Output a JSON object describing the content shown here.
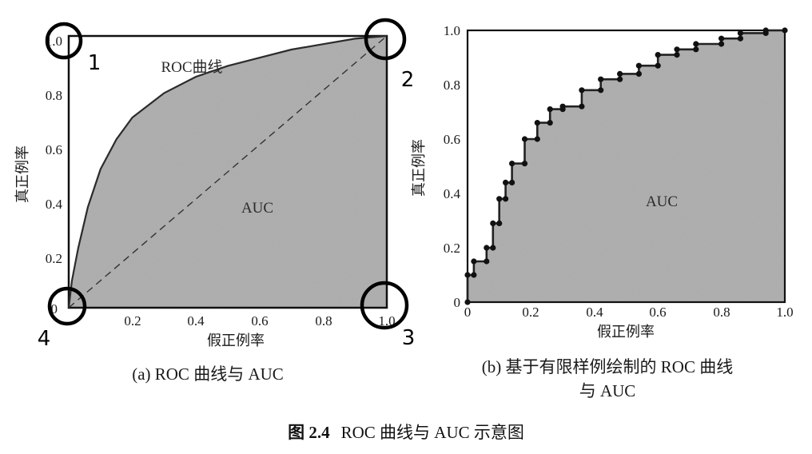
{
  "figure": {
    "caption_label": "图 2.4",
    "caption_text": "ROC 曲线与 AUC 示意图"
  },
  "panel_a": {
    "caption": "(a) ROC 曲线与 AUC",
    "curve_label": "ROC曲线",
    "area_label": "AUC",
    "xlabel": "假正例率",
    "ylabel": "真正例率",
    "x_ticks": [
      "0.2",
      "0.4",
      "0.6",
      "0.8",
      "1.0"
    ],
    "y_ticks": [
      "0.2",
      "0.4",
      "0.6",
      "0.8",
      "1.0"
    ],
    "origin_label": "0",
    "corner_numbers": [
      "1",
      "2",
      "3",
      "4"
    ]
  },
  "panel_b": {
    "caption_line1": "(b) 基于有限样例绘制的 ROC 曲线",
    "caption_line2": "与 AUC",
    "area_label": "AUC",
    "xlabel": "假正例率",
    "ylabel": "真正例率",
    "x_ticks": [
      "0",
      "0.2",
      "0.4",
      "0.6",
      "0.8",
      "1.0"
    ],
    "y_ticks": [
      "0",
      "0.2",
      "0.4",
      "0.6",
      "0.8",
      "1.0"
    ]
  },
  "chart_data": [
    {
      "type": "area",
      "xlim": [
        0,
        1
      ],
      "ylim": [
        0,
        1
      ],
      "series": [
        {
          "name": "ROC曲线",
          "x": [
            0,
            0.01,
            0.03,
            0.06,
            0.1,
            0.15,
            0.2,
            0.3,
            0.4,
            0.5,
            0.6,
            0.7,
            0.8,
            0.9,
            1.0
          ],
          "y": [
            0,
            0.1,
            0.22,
            0.37,
            0.51,
            0.62,
            0.7,
            0.79,
            0.85,
            0.89,
            0.92,
            0.95,
            0.97,
            0.99,
            1.0
          ]
        },
        {
          "x": [
            0,
            1
          ],
          "y": [
            0,
            1
          ],
          "style": "dashed"
        }
      ]
    },
    {
      "type": "line",
      "xlim": [
        0,
        1
      ],
      "ylim": [
        0,
        1
      ],
      "series": [
        {
          "x": [
            0,
            0,
            0.02,
            0.02,
            0.06,
            0.06,
            0.08,
            0.08,
            0.1,
            0.1,
            0.12,
            0.12,
            0.14,
            0.14,
            0.18,
            0.18,
            0.22,
            0.22,
            0.26,
            0.26,
            0.3,
            0.3,
            0.36,
            0.36,
            0.42,
            0.42,
            0.48,
            0.48,
            0.54,
            0.54,
            0.6,
            0.6,
            0.66,
            0.66,
            0.72,
            0.72,
            0.8,
            0.8,
            0.86,
            0.86,
            0.94,
            0.94,
            1.0
          ],
          "y": [
            0,
            0.1,
            0.1,
            0.15,
            0.15,
            0.2,
            0.2,
            0.29,
            0.29,
            0.38,
            0.38,
            0.44,
            0.44,
            0.51,
            0.51,
            0.6,
            0.6,
            0.66,
            0.66,
            0.71,
            0.71,
            0.72,
            0.72,
            0.78,
            0.78,
            0.82,
            0.82,
            0.84,
            0.84,
            0.87,
            0.87,
            0.91,
            0.91,
            0.93,
            0.93,
            0.95,
            0.95,
            0.97,
            0.97,
            0.99,
            0.99,
            1.0,
            1.0
          ]
        }
      ]
    }
  ]
}
